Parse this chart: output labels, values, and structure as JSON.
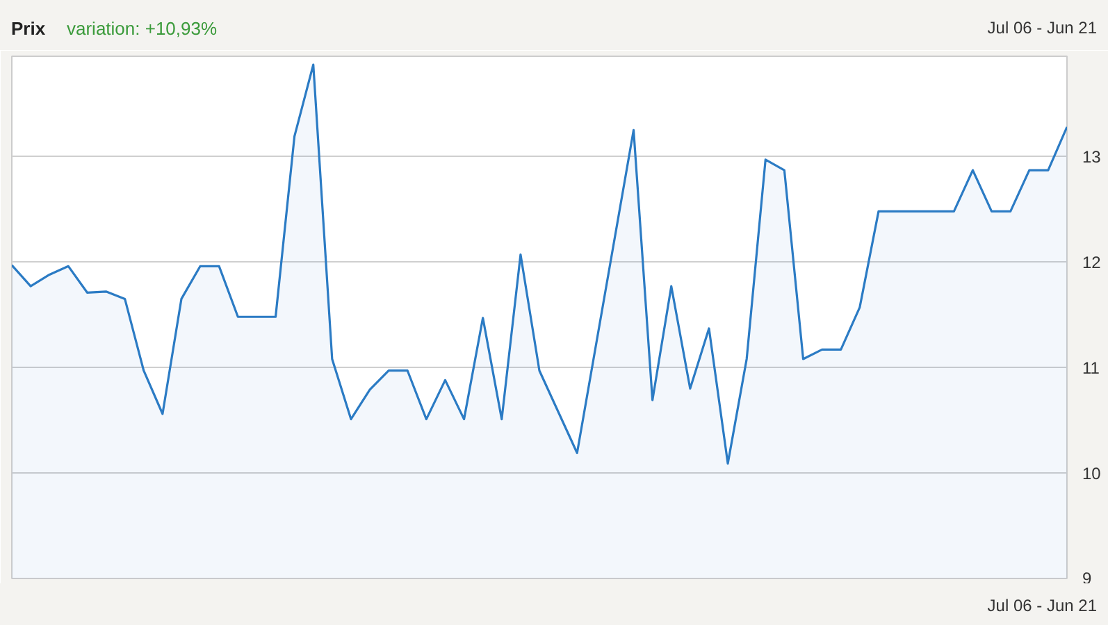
{
  "chart_data": {
    "type": "area",
    "title": "Prix",
    "subtitle": "variation: +10,93%",
    "annotations": [
      "Jul 06 - Jun 21",
      "Jul 06 - Jun 21"
    ],
    "categories": [
      null,
      null,
      null,
      null,
      null,
      null,
      null,
      null,
      null,
      null,
      null,
      null,
      null,
      null,
      null,
      null,
      null,
      null,
      null,
      null,
      null,
      null,
      null,
      null,
      null,
      null,
      null,
      null,
      null,
      null,
      null,
      null,
      null,
      null,
      null,
      null,
      null,
      null,
      null,
      null,
      null,
      null,
      null,
      null,
      null,
      null,
      null,
      null,
      null,
      null,
      null,
      null,
      null,
      null,
      null,
      null,
      null
    ],
    "series": [
      {
        "color": "#2b7bc4",
        "values": [
          11.97,
          11.77,
          11.88,
          11.96,
          11.71,
          11.72,
          11.65,
          10.97,
          10.56,
          11.65,
          11.96,
          11.96,
          11.48,
          11.48,
          11.48,
          13.19,
          13.87,
          11.08,
          10.51,
          10.79,
          10.97,
          10.97,
          10.51,
          10.88,
          10.51,
          11.47,
          10.51,
          12.07,
          10.97,
          10.58,
          10.19,
          11.21,
          12.23,
          13.25,
          10.69,
          11.77,
          10.8,
          11.37,
          10.09,
          11.08,
          12.97,
          12.87,
          11.08,
          11.17,
          11.17,
          11.57,
          12.48,
          12.48,
          12.48,
          12.48,
          12.48,
          12.87,
          12.48,
          12.48,
          12.87,
          12.87,
          13.28
        ]
      }
    ],
    "ylim": [
      9,
      13.95
    ],
    "yticks": [
      9,
      10,
      11,
      12,
      13
    ],
    "tick_labels": "y",
    "grid": "y"
  }
}
